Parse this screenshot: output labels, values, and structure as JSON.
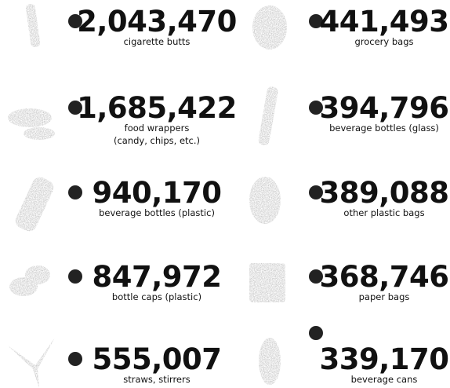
{
  "items": [
    {
      "count": "2,043,470",
      "label": [
        "cigarette butts"
      ]
    },
    {
      "count": "1,685,422",
      "label": [
        "food wrappers",
        "(candy, chips, etc.)"
      ]
    },
    {
      "count": "940,170",
      "label": [
        "beverage bottles (plastic)"
      ]
    },
    {
      "count": "847,972",
      "label": [
        "bottle caps (plastic)"
      ]
    },
    {
      "count": "555,007",
      "label": [
        "straws, stirrers"
      ]
    },
    {
      "count": "441,493",
      "label": [
        "grocery bags"
      ]
    },
    {
      "count": "394,796",
      "label": [
        "beverage bottles (glass)"
      ]
    },
    {
      "count": "389,088",
      "label": [
        "other plastic bags"
      ]
    },
    {
      "count": "368,746",
      "label": [
        "paper bags"
      ]
    },
    {
      "count": "339,170",
      "label": [
        "beverage cans"
      ]
    }
  ]
}
